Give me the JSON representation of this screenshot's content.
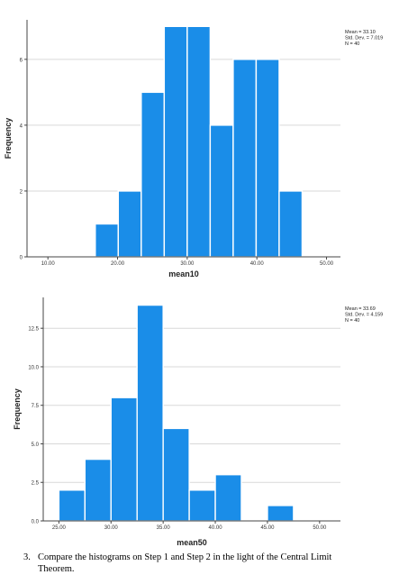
{
  "chart_data": [
    {
      "type": "bar",
      "xlabel": "mean10",
      "ylabel": "Frequency",
      "bar_color": "#1a8de8",
      "bin_width": 3.3,
      "xlim": [
        7,
        52
      ],
      "xticks": [
        10,
        20,
        30,
        40,
        50
      ],
      "xtick_labels": [
        "10.00",
        "20.00",
        "30.00",
        "40.00",
        "50.00"
      ],
      "ylim": [
        0,
        7.2
      ],
      "yticks": [
        0,
        2,
        4,
        6
      ],
      "ytick_labels": [
        "0",
        "2",
        "4",
        "6"
      ],
      "bins": [
        {
          "start": 16.8,
          "count": 1
        },
        {
          "start": 20.1,
          "count": 2
        },
        {
          "start": 23.4,
          "count": 5
        },
        {
          "start": 26.7,
          "count": 7
        },
        {
          "start": 30.0,
          "count": 7
        },
        {
          "start": 33.3,
          "count": 4
        },
        {
          "start": 36.6,
          "count": 6
        },
        {
          "start": 39.9,
          "count": 6
        },
        {
          "start": 43.2,
          "count": 2
        }
      ],
      "stats": [
        "Mean = 33.10",
        "Std. Dev. = 7.019",
        "N = 40"
      ]
    },
    {
      "type": "bar",
      "xlabel": "mean50",
      "ylabel": "Frequency",
      "bar_color": "#1a8de8",
      "bin_width": 2.5,
      "xlim": [
        23.5,
        52
      ],
      "xticks": [
        25,
        30,
        35,
        40,
        45,
        50
      ],
      "xtick_labels": [
        "25.00",
        "30.00",
        "35.00",
        "40.00",
        "45.00",
        "50.00"
      ],
      "ylim": [
        0,
        14.5
      ],
      "yticks": [
        0,
        2.5,
        5,
        7.5,
        10,
        12.5
      ],
      "ytick_labels": [
        "0.0",
        "2.5",
        "5.0",
        "7.5",
        "10.0",
        "12.5"
      ],
      "bins": [
        {
          "start": 25.0,
          "count": 2
        },
        {
          "start": 27.5,
          "count": 4
        },
        {
          "start": 30.0,
          "count": 8
        },
        {
          "start": 32.5,
          "count": 14
        },
        {
          "start": 35.0,
          "count": 6
        },
        {
          "start": 37.5,
          "count": 2
        },
        {
          "start": 40.0,
          "count": 3
        },
        {
          "start": 42.5,
          "count": 0
        },
        {
          "start": 45.0,
          "count": 1
        }
      ],
      "stats": [
        "Mean = 33.69",
        "Std. Dev. = 4.159",
        "N = 40"
      ]
    }
  ],
  "question": {
    "number": "3.",
    "line1": "Compare the histograms on Step 1 and Step 2 in the light of the Central Limit",
    "line2": "Theorem."
  }
}
